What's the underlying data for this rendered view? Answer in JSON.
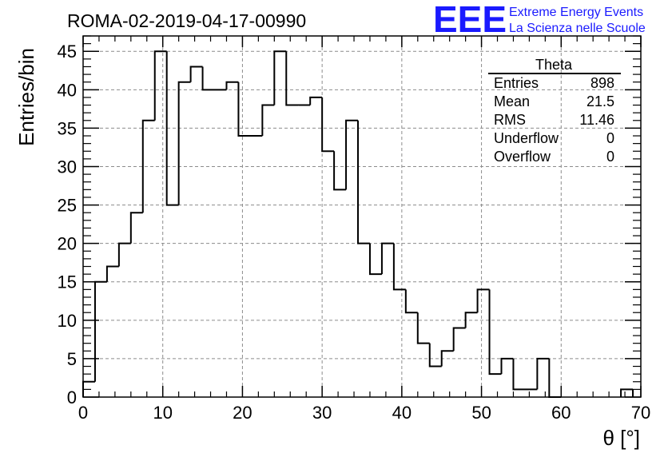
{
  "chart_data": {
    "type": "bar",
    "title": "ROMA-02-2019-04-17-00990",
    "xlabel": "θ [°]",
    "ylabel": "Entries/bin",
    "xlim": [
      0,
      70
    ],
    "ylim": [
      0,
      47
    ],
    "bin_width": 1.5,
    "x_ticks": [
      0,
      10,
      20,
      30,
      40,
      50,
      60,
      70
    ],
    "y_ticks": [
      0,
      5,
      10,
      15,
      20,
      25,
      30,
      35,
      40,
      45
    ],
    "grid": true,
    "histogram_style": "step",
    "bins_start": [
      0,
      1.5,
      3,
      4.5,
      6,
      7.5,
      9,
      10.5,
      12,
      13.5,
      15,
      16.5,
      18,
      19.5,
      21,
      22.5,
      24,
      25.5,
      27,
      28.5,
      30,
      31.5,
      33,
      34.5,
      36,
      37.5,
      39,
      40.5,
      42,
      43.5,
      45,
      46.5,
      48,
      49.5,
      51,
      52.5,
      54,
      55.5,
      57,
      58.5,
      60,
      61.5,
      63,
      64.5,
      66,
      67.5
    ],
    "values": [
      2,
      15,
      17,
      20,
      24,
      36,
      45,
      25,
      41,
      43,
      40,
      40,
      41,
      34,
      34,
      38,
      45,
      38,
      38,
      39,
      32,
      27,
      36,
      20,
      16,
      20,
      14,
      11,
      7,
      4,
      6,
      9,
      11,
      14,
      3,
      5,
      1,
      1,
      5,
      0,
      0,
      0,
      0,
      0,
      0,
      1
    ]
  },
  "stats_box": {
    "title": "Theta",
    "rows": [
      {
        "label": "Entries",
        "value": "898"
      },
      {
        "label": "Mean",
        "value": "21.5"
      },
      {
        "label": "RMS",
        "value": "11.46"
      },
      {
        "label": "Underflow",
        "value": "0"
      },
      {
        "label": "Overflow",
        "value": "0"
      }
    ]
  },
  "logo": {
    "mark": "EEE",
    "line1": "Extreme Energy Events",
    "line2": "La Scienza nelle Scuole",
    "color": "#1a1aff"
  }
}
